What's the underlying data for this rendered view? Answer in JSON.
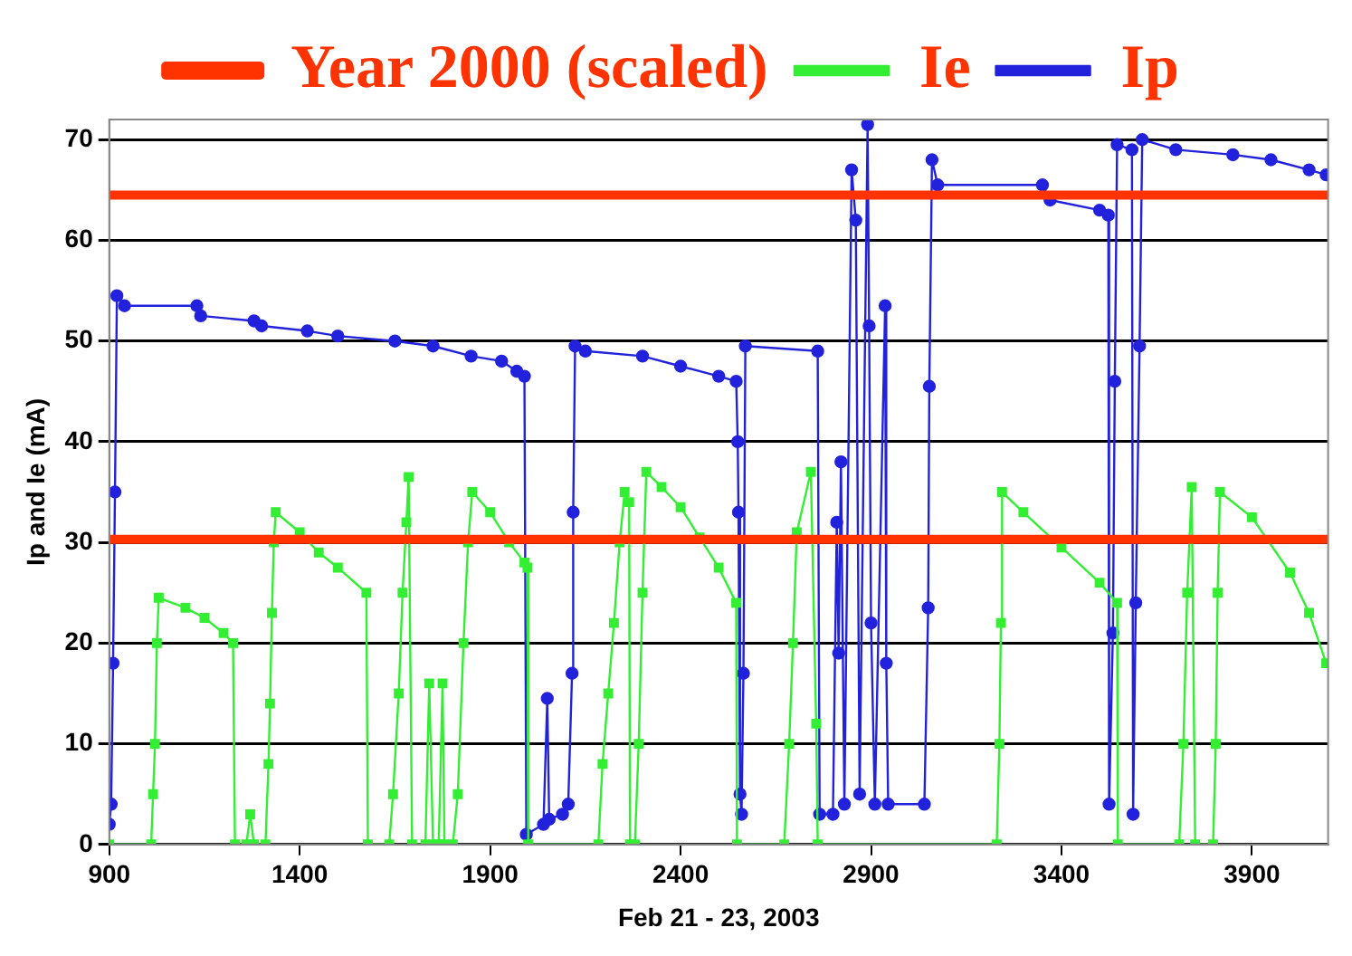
{
  "chart_data": {
    "type": "line",
    "xlabel": "Feb 21 - 23, 2003",
    "ylabel": "Ip and Ie (mA)",
    "xlim": [
      900,
      4100
    ],
    "ylim": [
      0,
      72
    ],
    "xticks": [
      900,
      1400,
      1900,
      2400,
      2900,
      3400,
      3900
    ],
    "yticks": [
      0,
      10,
      20,
      30,
      40,
      50,
      60,
      70
    ],
    "grid": "y",
    "legend": "top",
    "line_style": "solid",
    "series": [
      {
        "name": "Year 2000 (scaled)",
        "color": "#ff3300",
        "marker": "none",
        "x": [
          900,
          4100
        ],
        "values": [
          64.5,
          64.5
        ]
      },
      {
        "color": "#ff3300",
        "marker": "none",
        "x": [
          900,
          4100
        ],
        "values": [
          30.3,
          30.3
        ]
      },
      {
        "name": "Ie",
        "color": "#33ee33",
        "marker": "square",
        "x": [
          900,
          1010,
          1015,
          1020,
          1025,
          1030,
          1100,
          1150,
          1200,
          1225,
          1230,
          1260,
          1270,
          1280,
          1310,
          1318,
          1322,
          1327,
          1332,
          1337,
          1400,
          1450,
          1500,
          1575,
          1579,
          1635,
          1645,
          1660,
          1670,
          1680,
          1686,
          1695,
          1730,
          1740,
          1750,
          1765,
          1775,
          1780,
          1802,
          1815,
          1830,
          1842,
          1853,
          1900,
          1950,
          1990,
          1998,
          2000,
          2184,
          2195,
          2210,
          2225,
          2240,
          2253,
          2265,
          2267,
          2280,
          2290,
          2300,
          2310,
          2350,
          2400,
          2450,
          2500,
          2546,
          2548,
          2672,
          2685,
          2695,
          2705,
          2742,
          2756,
          2760,
          3230,
          3237,
          3241,
          3244,
          3300,
          3400,
          3500,
          3546,
          3548,
          3709,
          3720,
          3730,
          3742,
          3751,
          3798,
          3805,
          3810,
          3816,
          3900,
          4000,
          4050,
          4095
        ],
        "values": [
          0,
          0,
          5,
          10,
          20,
          24.5,
          23.5,
          22.5,
          21,
          20,
          0,
          0,
          3,
          0,
          0,
          8,
          14,
          23,
          30,
          33,
          31,
          29,
          27.5,
          25,
          0,
          0,
          5,
          15,
          25,
          32,
          36.5,
          0,
          0,
          16,
          0,
          0,
          16,
          0,
          0,
          5,
          20,
          30,
          35,
          33,
          30,
          28,
          27.5,
          0,
          0,
          8,
          15,
          22,
          30,
          35,
          34,
          0,
          0,
          10,
          25,
          37,
          35.5,
          33.5,
          30.5,
          27.5,
          24,
          0,
          0,
          10,
          20,
          31,
          37,
          12,
          0,
          0,
          10,
          22,
          35,
          33,
          29.5,
          26,
          24,
          0,
          0,
          10,
          25,
          35.5,
          0,
          0,
          10,
          25,
          35,
          32.5,
          27,
          23,
          18
        ]
      },
      {
        "name": "Ip",
        "color": "#2222dd",
        "marker": "circle",
        "x": [
          900,
          905,
          910,
          915,
          920,
          940,
          1130,
          1140,
          1280,
          1300,
          1420,
          1500,
          1650,
          1750,
          1850,
          1930,
          1970,
          1990,
          1995,
          2040,
          2050,
          2055,
          2090,
          2105,
          2115,
          2118,
          2123,
          2150,
          2300,
          2400,
          2500,
          2546,
          2550,
          2552,
          2556,
          2560,
          2565,
          2570,
          2760,
          2765,
          2800,
          2810,
          2815,
          2821,
          2830,
          2849,
          2860,
          2870,
          2891,
          2895,
          2900,
          2910,
          2937,
          2940,
          2945,
          3040,
          3050,
          3053,
          3060,
          3075,
          3350,
          3370,
          3500,
          3523,
          3525,
          3535,
          3540,
          3546,
          3585,
          3588,
          3595,
          3605,
          3612,
          3700,
          3850,
          3950,
          4050,
          4095
        ],
        "values": [
          2,
          4,
          18,
          35,
          54.5,
          53.5,
          53.5,
          52.5,
          52,
          51.5,
          51,
          50.5,
          50,
          49.5,
          48.5,
          48,
          47,
          46.5,
          1,
          2,
          14.5,
          2.5,
          3,
          4,
          17,
          33,
          49.5,
          49,
          48.5,
          47.5,
          46.5,
          46,
          40,
          33,
          5,
          3,
          17,
          49.5,
          49,
          3,
          3,
          32,
          19,
          38,
          4,
          67,
          62,
          5,
          71.5,
          51.5,
          22,
          4,
          53.5,
          18,
          4,
          4,
          23.5,
          45.5,
          68,
          65.5,
          65.5,
          64,
          63,
          62.5,
          4,
          21,
          46,
          69.5,
          69,
          3,
          24,
          49.5,
          70,
          69,
          68.5,
          68,
          67,
          66.5
        ]
      }
    ]
  }
}
